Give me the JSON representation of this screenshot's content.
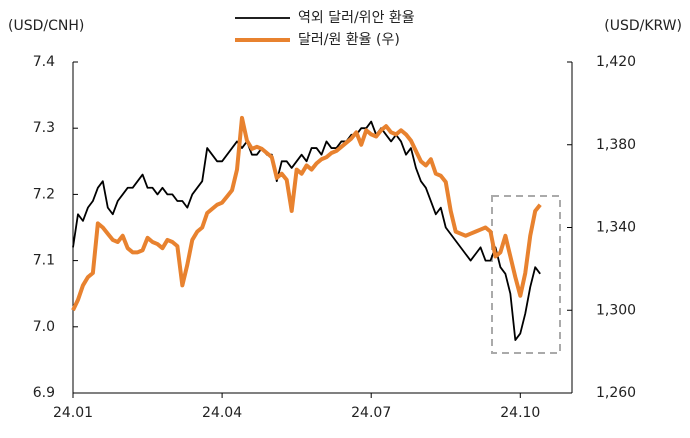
{
  "chart_data": {
    "type": "line",
    "y_label": "(USD/CNH)",
    "y2_label": "(USD/KRW)",
    "categories": [
      "24.01",
      null,
      null,
      null,
      null,
      null,
      null,
      null,
      null,
      null,
      null,
      null,
      null,
      null,
      null,
      null,
      null,
      null,
      null,
      null,
      null,
      null,
      null,
      null,
      null,
      null,
      null,
      null,
      null,
      null,
      "24.04",
      null,
      null,
      null,
      null,
      null,
      null,
      null,
      null,
      null,
      null,
      null,
      null,
      null,
      null,
      null,
      null,
      null,
      null,
      null,
      null,
      null,
      null,
      null,
      null,
      null,
      null,
      null,
      null,
      null,
      "24.07",
      null,
      null,
      null,
      null,
      null,
      null,
      null,
      null,
      null,
      null,
      null,
      null,
      null,
      null,
      null,
      null,
      null,
      null,
      null,
      null,
      null,
      null,
      null,
      null,
      null,
      null,
      null,
      null,
      null,
      "24.10",
      null,
      null,
      null,
      null
    ],
    "series": [
      {
        "name": "역외 달러/위안 환율",
        "color": "#000000",
        "axis": "y",
        "values": [
          7.12,
          7.17,
          7.16,
          7.18,
          7.19,
          7.21,
          7.22,
          7.18,
          7.17,
          7.19,
          7.2,
          7.21,
          7.21,
          7.22,
          7.23,
          7.21,
          7.21,
          7.2,
          7.21,
          7.2,
          7.2,
          7.19,
          7.19,
          7.18,
          7.2,
          7.21,
          7.22,
          7.27,
          7.26,
          7.25,
          7.25,
          7.26,
          7.27,
          7.28,
          7.27,
          7.28,
          7.26,
          7.26,
          7.27,
          7.26,
          7.26,
          7.22,
          7.25,
          7.25,
          7.24,
          7.25,
          7.26,
          7.25,
          7.27,
          7.27,
          7.26,
          7.28,
          7.27,
          7.27,
          7.28,
          7.28,
          7.29,
          7.29,
          7.3,
          7.3,
          7.31,
          7.29,
          7.3,
          7.29,
          7.28,
          7.29,
          7.28,
          7.26,
          7.27,
          7.24,
          7.22,
          7.21,
          7.19,
          7.17,
          7.18,
          7.15,
          7.14,
          7.13,
          7.12,
          7.11,
          7.1,
          7.11,
          7.12,
          7.1,
          7.1,
          7.12,
          7.09,
          7.08,
          7.05,
          6.98,
          6.99,
          7.02,
          7.06,
          7.09,
          7.08
        ]
      },
      {
        "name": "달러/원 환율 (우)",
        "color": "#e8822f",
        "axis": "y2",
        "values": [
          1300,
          1305,
          1312,
          1316,
          1318,
          1342,
          1340,
          1337,
          1334,
          1333,
          1336,
          1330,
          1328,
          1328,
          1329,
          1335,
          1333,
          1332,
          1330,
          1334,
          1333,
          1331,
          1312,
          1322,
          1334,
          1338,
          1340,
          1347,
          1349,
          1351,
          1352,
          1355,
          1358,
          1368,
          1393,
          1382,
          1378,
          1379,
          1378,
          1376,
          1374,
          1364,
          1366,
          1363,
          1348,
          1368,
          1366,
          1370,
          1368,
          1371,
          1373,
          1374,
          1376,
          1377,
          1379,
          1381,
          1383,
          1386,
          1380,
          1387,
          1385,
          1384,
          1387,
          1389,
          1386,
          1385,
          1387,
          1385,
          1382,
          1377,
          1372,
          1370,
          1373,
          1366,
          1365,
          1362,
          1348,
          1338,
          1337,
          1336,
          1337,
          1338,
          1339,
          1340,
          1338,
          1326,
          1328,
          1336,
          1326,
          1316,
          1307,
          1318,
          1336,
          1348,
          1351
        ]
      }
    ],
    "ylim": [
      6.9,
      7.4
    ],
    "yticks": [
      {
        "value": 6.9,
        "label": "6.9"
      },
      {
        "value": 7,
        "label": "7.0"
      },
      7.1,
      7.2,
      7.3,
      7.4
    ],
    "y2lim": [
      1260,
      1420
    ],
    "y2ticks": [
      {
        "value": 1260,
        "label": "1,260"
      },
      {
        "value": 1300,
        "label": "1,300"
      },
      {
        "value": 1340,
        "label": "1,340"
      },
      {
        "value": 1380,
        "label": "1,380"
      },
      {
        "value": 1420,
        "label": "1,420"
      }
    ],
    "grid": false
  }
}
